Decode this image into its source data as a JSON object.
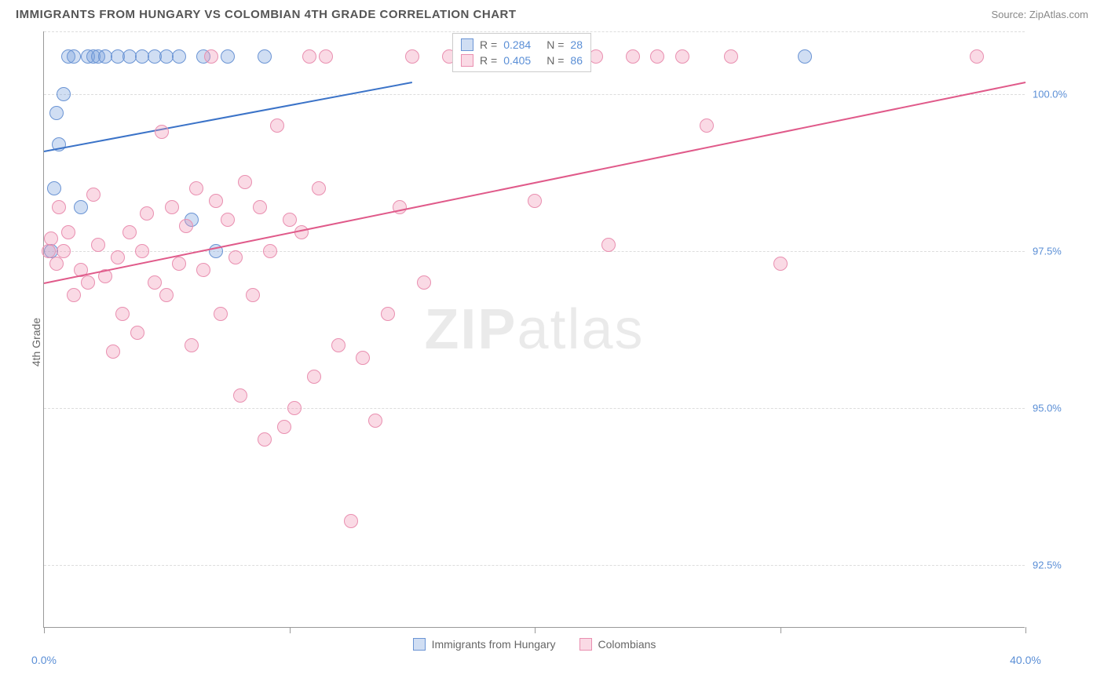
{
  "title": "IMMIGRANTS FROM HUNGARY VS COLOMBIAN 4TH GRADE CORRELATION CHART",
  "source": "Source: ZipAtlas.com",
  "watermark_bold": "ZIP",
  "watermark_light": "atlas",
  "y_axis_title": "4th Grade",
  "chart": {
    "type": "scatter",
    "xlim": [
      0,
      40
    ],
    "ylim": [
      91.5,
      101
    ],
    "x_ticks": [
      0,
      10,
      20,
      30,
      40
    ],
    "x_tick_labels": [
      "0.0%",
      "",
      "",
      "",
      "40.0%"
    ],
    "y_gridlines": [
      92.5,
      95.0,
      97.5,
      100.0,
      101.0
    ],
    "y_tick_labels": [
      "92.5%",
      "95.0%",
      "97.5%",
      "100.0%",
      ""
    ],
    "background_color": "#ffffff",
    "grid_color": "#dddddd",
    "axis_color": "#999999",
    "label_color": "#5b8fd6",
    "marker_radius": 9,
    "marker_stroke_width": 1.5,
    "series": [
      {
        "name": "Immigrants from Hungary",
        "fill_color": "rgba(120,160,220,0.35)",
        "stroke_color": "#6a94d4",
        "trend_color": "#3b73c8",
        "R": "0.284",
        "N": "28",
        "trend": {
          "x1": 0,
          "y1": 99.1,
          "x2": 15,
          "y2": 100.2
        },
        "points": [
          [
            0.3,
            97.5
          ],
          [
            0.4,
            98.5
          ],
          [
            0.5,
            99.7
          ],
          [
            0.6,
            99.2
          ],
          [
            0.8,
            100.0
          ],
          [
            1.0,
            100.6
          ],
          [
            1.2,
            100.6
          ],
          [
            1.5,
            98.2
          ],
          [
            1.8,
            100.6
          ],
          [
            2.0,
            100.6
          ],
          [
            2.2,
            100.6
          ],
          [
            2.5,
            100.6
          ],
          [
            3.0,
            100.6
          ],
          [
            3.5,
            100.6
          ],
          [
            4.0,
            100.6
          ],
          [
            4.5,
            100.6
          ],
          [
            5.0,
            100.6
          ],
          [
            5.5,
            100.6
          ],
          [
            6.0,
            98.0
          ],
          [
            6.5,
            100.6
          ],
          [
            7.0,
            97.5
          ],
          [
            7.5,
            100.6
          ],
          [
            9.0,
            100.6
          ],
          [
            31.0,
            100.6
          ]
        ]
      },
      {
        "name": "Colombians",
        "fill_color": "rgba(240,150,180,0.35)",
        "stroke_color": "#e98fb0",
        "trend_color": "#e05a8a",
        "R": "0.405",
        "N": "86",
        "trend": {
          "x1": 0,
          "y1": 97.0,
          "x2": 40,
          "y2": 100.2
        },
        "points": [
          [
            0.2,
            97.5
          ],
          [
            0.3,
            97.7
          ],
          [
            0.5,
            97.3
          ],
          [
            0.6,
            98.2
          ],
          [
            0.8,
            97.5
          ],
          [
            1.0,
            97.8
          ],
          [
            1.2,
            96.8
          ],
          [
            1.5,
            97.2
          ],
          [
            1.8,
            97.0
          ],
          [
            2.0,
            98.4
          ],
          [
            2.2,
            97.6
          ],
          [
            2.5,
            97.1
          ],
          [
            2.8,
            95.9
          ],
          [
            3.0,
            97.4
          ],
          [
            3.2,
            96.5
          ],
          [
            3.5,
            97.8
          ],
          [
            3.8,
            96.2
          ],
          [
            4.0,
            97.5
          ],
          [
            4.2,
            98.1
          ],
          [
            4.5,
            97.0
          ],
          [
            4.8,
            99.4
          ],
          [
            5.0,
            96.8
          ],
          [
            5.2,
            98.2
          ],
          [
            5.5,
            97.3
          ],
          [
            5.8,
            97.9
          ],
          [
            6.0,
            96.0
          ],
          [
            6.2,
            98.5
          ],
          [
            6.5,
            97.2
          ],
          [
            6.8,
            100.6
          ],
          [
            7.0,
            98.3
          ],
          [
            7.2,
            96.5
          ],
          [
            7.5,
            98.0
          ],
          [
            7.8,
            97.4
          ],
          [
            8.0,
            95.2
          ],
          [
            8.2,
            98.6
          ],
          [
            8.5,
            96.8
          ],
          [
            8.8,
            98.2
          ],
          [
            9.0,
            94.5
          ],
          [
            9.2,
            97.5
          ],
          [
            9.5,
            99.5
          ],
          [
            9.8,
            94.7
          ],
          [
            10.0,
            98.0
          ],
          [
            10.2,
            95.0
          ],
          [
            10.5,
            97.8
          ],
          [
            10.8,
            100.6
          ],
          [
            11.0,
            95.5
          ],
          [
            11.2,
            98.5
          ],
          [
            11.5,
            100.6
          ],
          [
            12.0,
            96.0
          ],
          [
            12.5,
            93.2
          ],
          [
            13.0,
            95.8
          ],
          [
            13.5,
            94.8
          ],
          [
            14.0,
            96.5
          ],
          [
            14.5,
            98.2
          ],
          [
            15.0,
            100.6
          ],
          [
            15.5,
            97.0
          ],
          [
            16.5,
            100.6
          ],
          [
            18.0,
            100.6
          ],
          [
            19.0,
            100.6
          ],
          [
            20.0,
            98.3
          ],
          [
            21.0,
            100.6
          ],
          [
            22.5,
            100.6
          ],
          [
            23.0,
            97.6
          ],
          [
            24.0,
            100.6
          ],
          [
            25.0,
            100.6
          ],
          [
            26.0,
            100.6
          ],
          [
            27.0,
            99.5
          ],
          [
            28.0,
            100.6
          ],
          [
            30.0,
            97.3
          ],
          [
            38.0,
            100.6
          ]
        ]
      }
    ]
  },
  "legend_series1_label": "Immigrants from Hungary",
  "legend_series2_label": "Colombians"
}
